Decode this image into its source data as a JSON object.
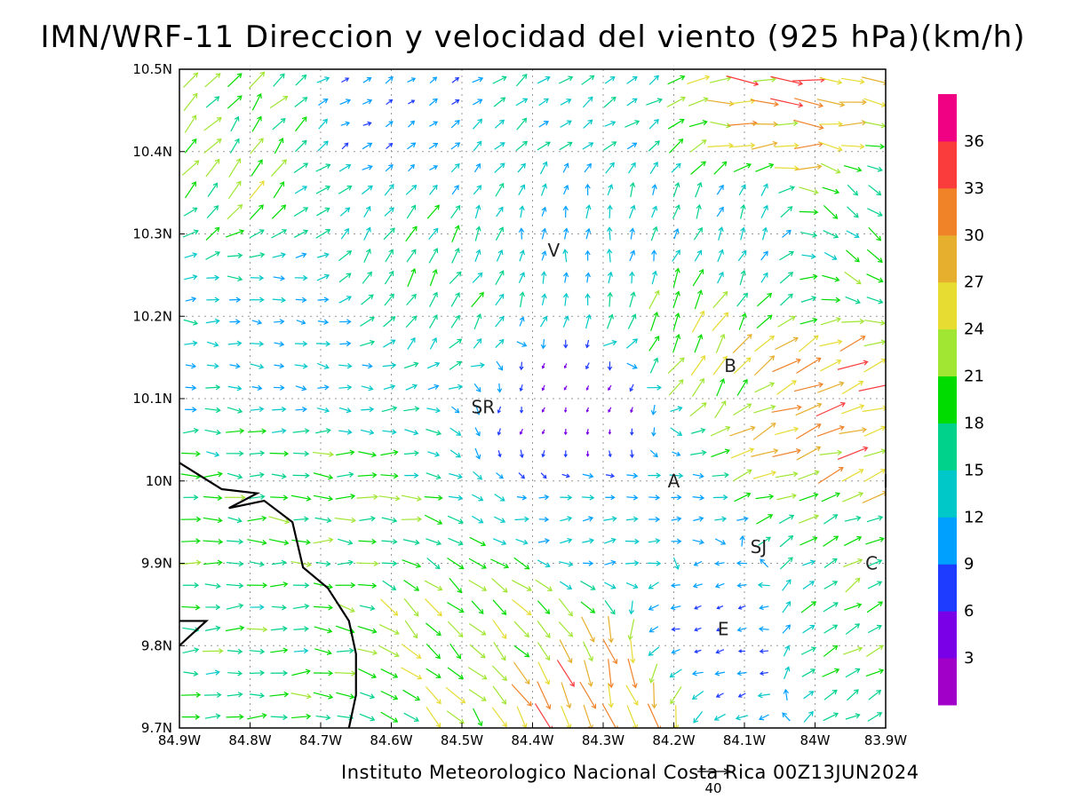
{
  "title": "IMN/WRF-11 Direccion y velocidad del viento (925 hPa)(km/h)",
  "footer": "Instituto Meteorologico Nacional Costa Rica 00Z13JUN2024",
  "reference_vector": {
    "label": "40",
    "value": 40
  },
  "map": {
    "lon_range": [
      -84.9,
      -83.9
    ],
    "lat_range": [
      9.7,
      10.5
    ],
    "x_ticks": [
      {
        "value": -84.9,
        "label": "84.9W"
      },
      {
        "value": -84.8,
        "label": "84.8W"
      },
      {
        "value": -84.7,
        "label": "84.7W"
      },
      {
        "value": -84.6,
        "label": "84.6W"
      },
      {
        "value": -84.5,
        "label": "84.5W"
      },
      {
        "value": -84.4,
        "label": "84.4W"
      },
      {
        "value": -84.3,
        "label": "84.3W"
      },
      {
        "value": -84.2,
        "label": "84.2W"
      },
      {
        "value": -84.1,
        "label": "84.1W"
      },
      {
        "value": -84.0,
        "label": "84W"
      },
      {
        "value": -83.9,
        "label": "83.9W"
      }
    ],
    "y_ticks": [
      {
        "value": 9.7,
        "label": "9.7N"
      },
      {
        "value": 9.8,
        "label": "9.8N"
      },
      {
        "value": 9.9,
        "label": "9.9N"
      },
      {
        "value": 10.0,
        "label": "10N"
      },
      {
        "value": 10.1,
        "label": "10.1N"
      },
      {
        "value": 10.2,
        "label": "10.2N"
      },
      {
        "value": 10.3,
        "label": "10.3N"
      },
      {
        "value": 10.4,
        "label": "10.4N"
      },
      {
        "value": 10.5,
        "label": "10.5N"
      }
    ],
    "grid": true,
    "cities": [
      {
        "label": "V",
        "lon": -84.37,
        "lat": 10.28
      },
      {
        "label": "SR",
        "lon": -84.47,
        "lat": 10.09
      },
      {
        "label": "B",
        "lon": -84.12,
        "lat": 10.14
      },
      {
        "label": "A",
        "lon": -84.2,
        "lat": 10.0
      },
      {
        "label": "SJ",
        "lon": -84.08,
        "lat": 9.92
      },
      {
        "label": "C",
        "lon": -83.92,
        "lat": 9.9
      },
      {
        "label": "E",
        "lon": -84.13,
        "lat": 9.82
      },
      {
        "label": "I",
        "lon": -83.9,
        "lat": 10.0
      }
    ],
    "coastline": [
      [
        -84.9,
        10.022
      ],
      [
        -84.84,
        9.99
      ],
      [
        -84.79,
        9.985
      ],
      [
        -84.83,
        9.967
      ],
      [
        -84.78,
        9.976
      ],
      [
        -84.74,
        9.95
      ],
      [
        -84.725,
        9.895
      ],
      [
        -84.69,
        9.87
      ],
      [
        -84.66,
        9.83
      ],
      [
        -84.65,
        9.79
      ],
      [
        -84.65,
        9.74
      ],
      [
        -84.66,
        9.7
      ]
    ],
    "coastline_nw": [
      [
        -84.9,
        9.8
      ],
      [
        -84.862,
        9.83
      ],
      [
        -84.9,
        9.83
      ]
    ]
  },
  "colorbar": {
    "levels": [
      "3",
      "6",
      "9",
      "12",
      "15",
      "18",
      "21",
      "24",
      "27",
      "30",
      "33",
      "36"
    ],
    "colors": [
      "#a000c8",
      "#7a00e8",
      "#1e3cff",
      "#00a0ff",
      "#00c8c8",
      "#00d28c",
      "#00dc00",
      "#a0e632",
      "#e6dc32",
      "#e6af2d",
      "#f08228",
      "#fa3c3c",
      "#f00082"
    ]
  },
  "chart_data": {
    "type": "vector-field",
    "units": "km/h",
    "field_sections": [
      {
        "lon": [
          -84.9,
          -84.7
        ],
        "lat": [
          10.35,
          10.5
        ],
        "dir_deg": 40,
        "speed": 22
      },
      {
        "lon": [
          -84.7,
          -84.55
        ],
        "lat": [
          10.38,
          10.5
        ],
        "dir_deg": 60,
        "speed": 9
      },
      {
        "lon": [
          -84.55,
          -84.1
        ],
        "lat": [
          10.4,
          10.5
        ],
        "dir_deg": 55,
        "speed": 14
      },
      {
        "lon": [
          -84.2,
          -83.9
        ],
        "lat": [
          10.4,
          10.5
        ],
        "dir_deg": 95,
        "speed": 30
      },
      {
        "lon": [
          -84.7,
          -84.45
        ],
        "lat": [
          10.15,
          10.35
        ],
        "dir_deg": 30,
        "speed": 18
      },
      {
        "lon": [
          -84.45,
          -84.2
        ],
        "lat": [
          10.2,
          10.4
        ],
        "dir_deg": 5,
        "speed": 12
      },
      {
        "lon": [
          -84.2,
          -84.0
        ],
        "lat": [
          10.2,
          10.4
        ],
        "dir_deg": 20,
        "speed": 12
      },
      {
        "lon": [
          -84.25,
          -84.05
        ],
        "lat": [
          10.12,
          10.22
        ],
        "dir_deg": 30,
        "speed": 24
      },
      {
        "lon": [
          -84.0,
          -83.9
        ],
        "lat": [
          10.2,
          10.4
        ],
        "dir_deg": 130,
        "speed": 18
      },
      {
        "lon": [
          -84.9,
          -84.55
        ],
        "lat": [
          10.1,
          10.25
        ],
        "dir_deg": 100,
        "speed": 12
      },
      {
        "lon": [
          -84.45,
          -84.2
        ],
        "lat": [
          10.0,
          10.15
        ],
        "dir_deg": 200,
        "speed": 4
      },
      {
        "lon": [
          -84.05,
          -83.9
        ],
        "lat": [
          10.05,
          10.15
        ],
        "dir_deg": 70,
        "speed": 30
      },
      {
        "lon": [
          -84.9,
          -84.5
        ],
        "lat": [
          9.9,
          10.05
        ],
        "dir_deg": 92,
        "speed": 19
      },
      {
        "lon": [
          -84.55,
          -84.4
        ],
        "lat": [
          9.75,
          9.9
        ],
        "dir_deg": 135,
        "speed": 22
      },
      {
        "lon": [
          -84.35,
          -84.25
        ],
        "lat": [
          9.7,
          9.8
        ],
        "dir_deg": 160,
        "speed": 30
      },
      {
        "lon": [
          -84.4,
          -84.2
        ],
        "lat": [
          9.92,
          10.0
        ],
        "dir_deg": 80,
        "speed": 12
      },
      {
        "lon": [
          -84.3,
          -84.0
        ],
        "lat": [
          9.76,
          9.86
        ],
        "dir_deg": 260,
        "speed": 7
      },
      {
        "lon": [
          -84.0,
          -83.9
        ],
        "lat": [
          9.75,
          9.9
        ],
        "dir_deg": 60,
        "speed": 18
      },
      {
        "lon": [
          -84.9,
          -84.7
        ],
        "lat": [
          9.7,
          9.85
        ],
        "dir_deg": 90,
        "speed": 18
      }
    ]
  }
}
